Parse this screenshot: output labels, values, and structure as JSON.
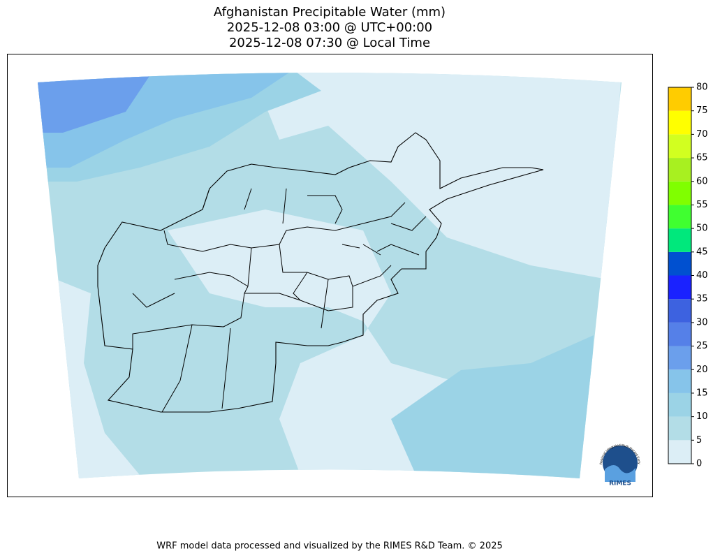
{
  "chart_data": {
    "type": "map",
    "title": [
      "Afghanistan Precipitable Water (mm)",
      "2025-12-08 03:00 @ UTC+00:00",
      "2025-12-08 07:30 @ Local Time"
    ],
    "colorbar": {
      "levels": [
        0,
        5,
        10,
        15,
        20,
        25,
        30,
        35,
        40,
        45,
        50,
        55,
        60,
        65,
        70,
        75,
        80
      ],
      "colors": [
        "#dceef6",
        "#b3dde7",
        "#9bd3e6",
        "#86c4ea",
        "#6b9fec",
        "#5580e8",
        "#3d62e0",
        "#1a22ff",
        "#0050d0",
        "#00e87c",
        "#40ff30",
        "#80ff00",
        "#a8f020",
        "#d2ff20",
        "#ffff00",
        "#ffcc00"
      ]
    },
    "logo": {
      "text": "RIMES",
      "ring_text": "Regional Integrated Multi-Hazard Early Warning System"
    },
    "footer": "WRF model data processed and visualized by the RIMES R&D Team. © 2025"
  }
}
